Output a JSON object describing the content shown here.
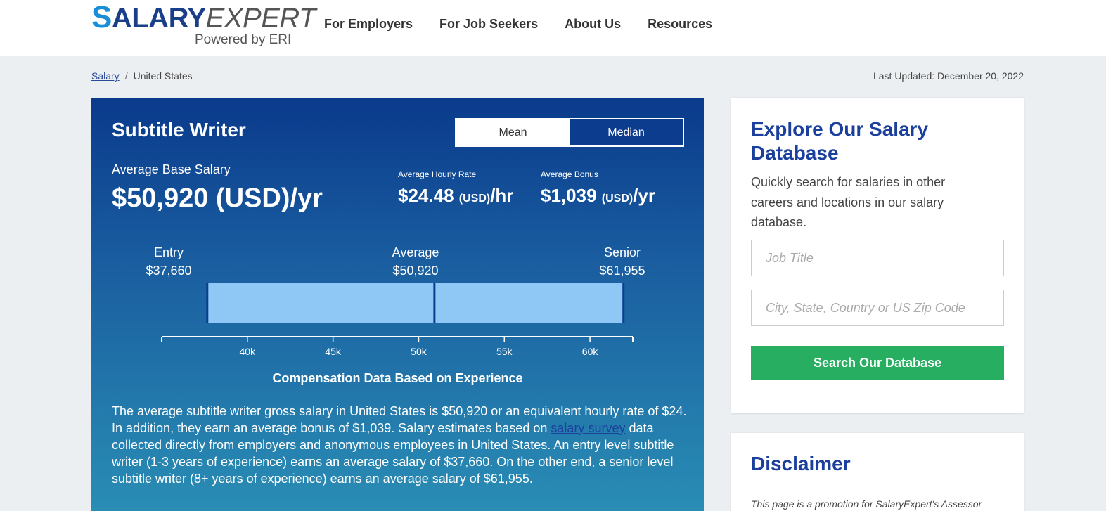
{
  "header": {
    "logo": {
      "s": "S",
      "salary": "ALARY",
      "expert": "EXPERT",
      "powered": "Powered by ERI"
    },
    "nav": [
      "For Employers",
      "For Job Seekers",
      "About Us",
      "Resources"
    ]
  },
  "breadcrumb": {
    "home": "Salary",
    "separator": "/",
    "current": "United States"
  },
  "last_updated": "Last Updated: December 20, 2022",
  "salary_card": {
    "job_title": "Subtitle Writer",
    "toggle": {
      "mean": "Mean",
      "median": "Median",
      "selected": "Median"
    },
    "base_label": "Average Base Salary",
    "base_value": "$50,920 (USD)/yr",
    "hourly_label": "Average Hourly Rate",
    "hourly_amount": "$24.48",
    "hourly_usd": "(USD)",
    "hourly_unit": "/hr",
    "bonus_label": "Average Bonus",
    "bonus_amount": "$1,039",
    "bonus_usd": "(USD)",
    "bonus_unit": "/yr",
    "levels": {
      "entry": {
        "label": "Entry",
        "value": "$37,660"
      },
      "average": {
        "label": "Average",
        "value": "$50,920"
      },
      "senior": {
        "label": "Senior",
        "value": "$61,955"
      }
    },
    "chart_caption": "Compensation Data Based on Experience",
    "description_part1": "The average subtitle writer gross salary in United States is $50,920 or an equivalent hourly rate of $24. In addition, they earn an average bonus of $1,039. Salary estimates based on ",
    "description_link": "salary survey",
    "description_part2": " data collected directly from employers and anonymous employees in United States. An entry level subtitle writer (1-3 years of experience) earns an average salary of $37,660. On the other end, a senior level subtitle writer (8+ years of experience) earns an average salary of $61,955."
  },
  "chart_data": {
    "type": "bar",
    "orientation": "horizontal-range",
    "min": 37660,
    "average": 50920,
    "max": 61955,
    "xlim": [
      35000,
      62500
    ],
    "xticks": [
      40000,
      45000,
      50000,
      55000,
      60000
    ],
    "xtick_labels": [
      "40k",
      "45k",
      "50k",
      "55k",
      "60k"
    ],
    "title": "Compensation Data Based on Experience",
    "colors": {
      "bar": "#90c8f5",
      "marker": "#0b3c8e",
      "axis": "#ffffff"
    }
  },
  "explore": {
    "title": "Explore Our Salary Database",
    "text": "Quickly search for salaries in other careers and locations in our salary database.",
    "job_placeholder": "Job Title",
    "location_placeholder": "City, State, Country or US Zip Code",
    "search_label": "Search Our Database"
  },
  "disclaimer": {
    "title": "Disclaimer",
    "text": "This page is a promotion for SalaryExpert's Assessor"
  }
}
